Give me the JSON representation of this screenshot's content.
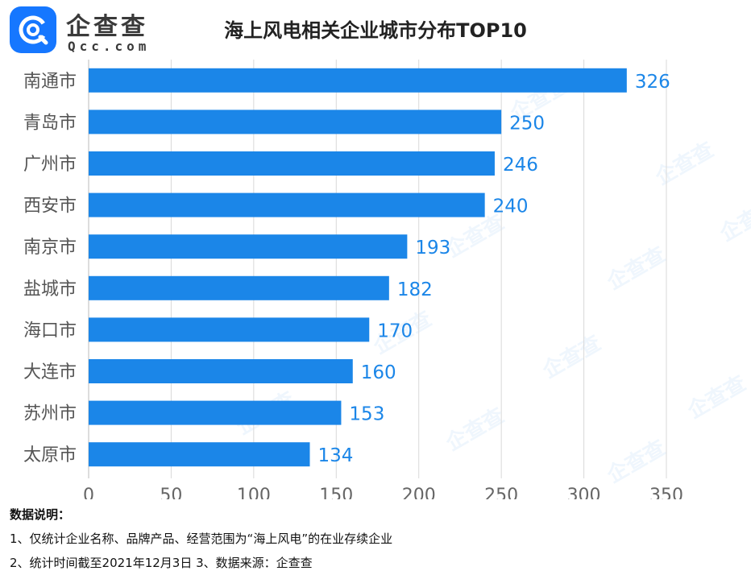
{
  "brand": {
    "name": "企查查",
    "domain": "Qcc.com",
    "watermark": "企查查"
  },
  "chart_data": {
    "type": "bar",
    "orientation": "horizontal",
    "title": "海上风电相关企业城市分布TOP10",
    "categories": [
      "南通市",
      "青岛市",
      "广州市",
      "西安市",
      "南京市",
      "盐城市",
      "海口市",
      "大连市",
      "苏州市",
      "太原市"
    ],
    "values": [
      326,
      250,
      246,
      240,
      193,
      182,
      170,
      160,
      153,
      134
    ],
    "xlim": [
      0,
      350
    ],
    "xticks": [
      0,
      50,
      100,
      150,
      200,
      250,
      300,
      350
    ],
    "grid": "vertical",
    "bar_color": "#1b86e8",
    "label_color": "#1b86e8"
  },
  "notes": {
    "heading": "数据说明：",
    "line1": "1、仅统计企业名称、品牌产品、经营范围为“海上风电”的在业存续企业",
    "line2": "2、统计时间截至2021年12月3日   3、数据来源：企查查"
  }
}
